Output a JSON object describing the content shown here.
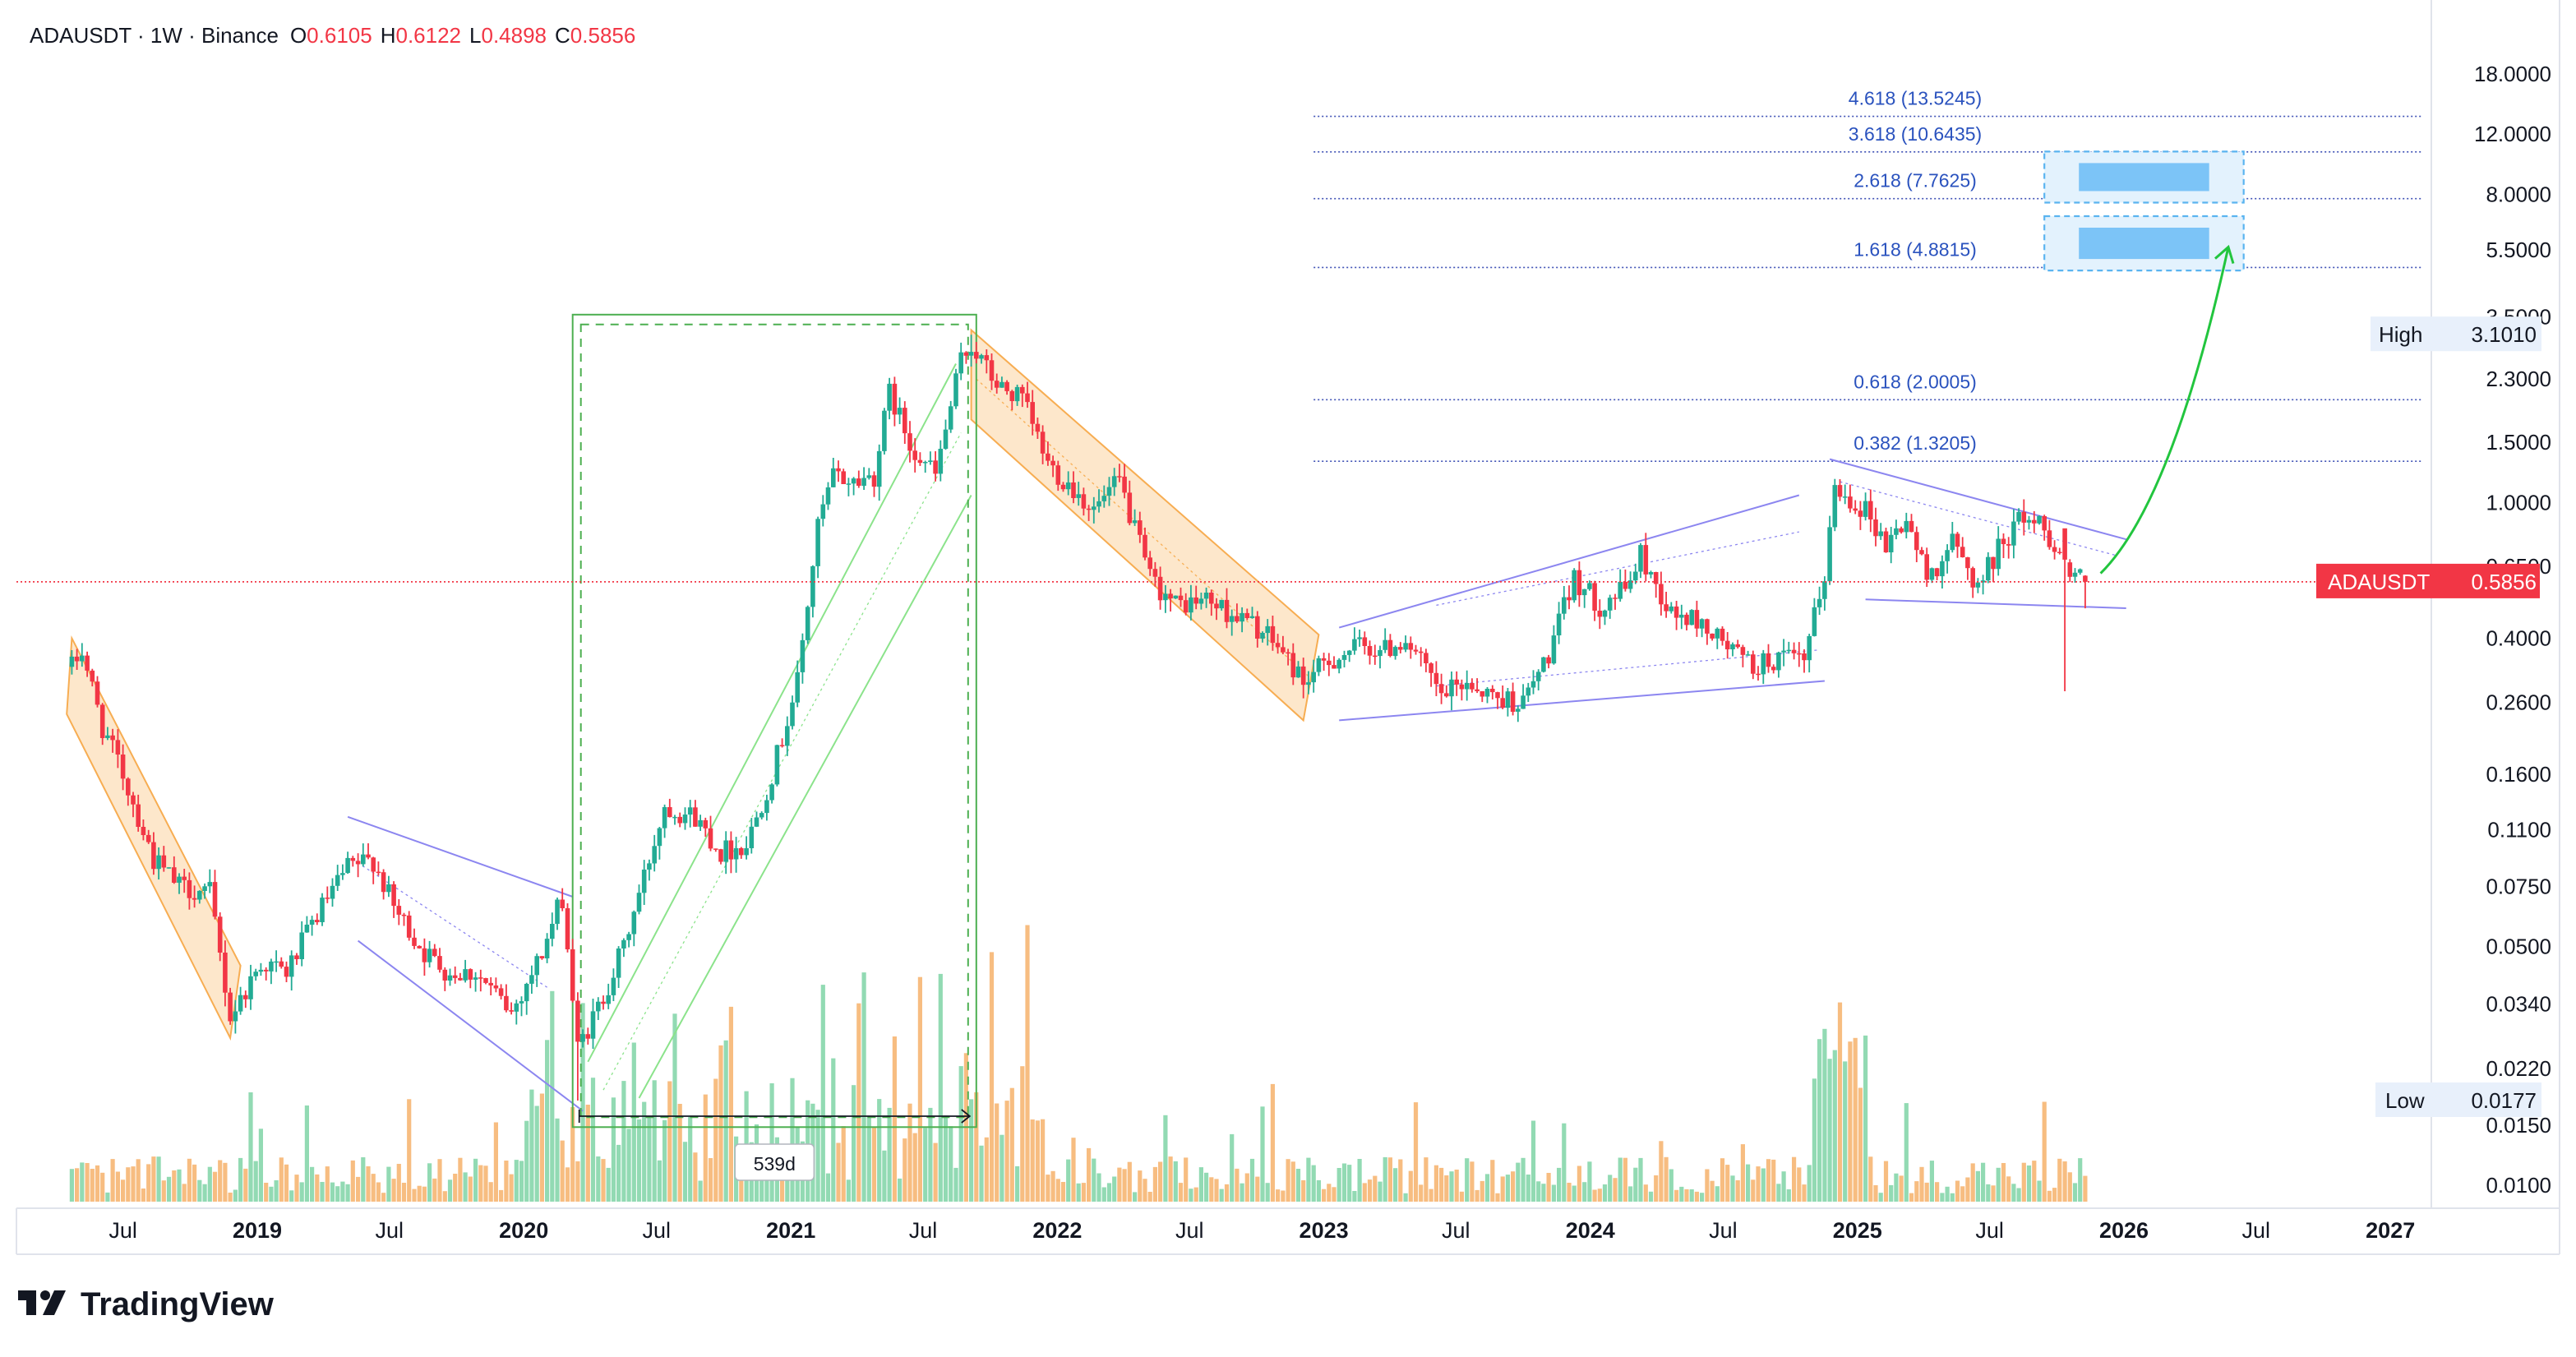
{
  "header": {
    "symbol_line": "ADAUSDT · 1W · Binance",
    "o_label": "O",
    "o_value": "0.6105",
    "h_label": "H",
    "h_value": "0.6122",
    "l_label": "L",
    "l_value": "0.4898",
    "c_label": "C",
    "c_value": "0.5856"
  },
  "branding": {
    "logo_text": "TradingView"
  },
  "price_scale": {
    "ticks": [
      "18.0000",
      "12.0000",
      "8.0000",
      "5.5000",
      "3.5000",
      "2.3000",
      "1.5000",
      "1.0000",
      "0.6500",
      "0.4000",
      "0.2600",
      "0.1600",
      "0.1100",
      "0.0750",
      "0.0500",
      "0.0340",
      "0.0220",
      "0.0150",
      "0.0100"
    ],
    "high_label": "High",
    "high_value": "3.1010",
    "low_label": "Low",
    "low_value": "0.0177",
    "current_symbol": "ADAUSDT",
    "current_value": "0.5856"
  },
  "time_axis": {
    "labels": [
      "Jul",
      "2019",
      "Jul",
      "2020",
      "Jul",
      "2021",
      "Jul",
      "2022",
      "Jul",
      "2023",
      "Jul",
      "2024",
      "Jul",
      "2025",
      "Jul",
      "2026",
      "Jul",
      "2027"
    ]
  },
  "fib_labels": [
    "4.618 (13.5245)",
    "3.618 (10.6435)",
    "2.618 (7.7625)",
    "1.618 (4.8815)",
    "0.618 (2.0005)",
    "0.382 (1.3205)"
  ],
  "measure_label": "539d",
  "colors": {
    "up": "#22ab94",
    "down": "#f23645",
    "volume_up": "#7fd3a6",
    "volume_down": "#f6b26b",
    "channel_fill": "#fde5c6",
    "channel_line": "#f7a540",
    "wedge_line": "#8c86f0",
    "box_line": "#4caf50",
    "arrow": "#22c53e",
    "target_fill": "#7cc4f7",
    "target_border": "#5ab4f0",
    "fib_line": "#3f51b5",
    "fib_text": "#2a52be",
    "price_line": "#f23645",
    "axis_text": "#131722"
  },
  "chart_data": {
    "type": "candlestick",
    "title": "ADAUSDT · 1W · Binance",
    "y_scale": "log",
    "ylim": [
      0.0085,
      19.5
    ],
    "xlim": [
      "2018-04-01",
      "2027-05-01"
    ],
    "last_price": 0.5856,
    "all_time_high": 3.101,
    "all_time_low": 0.0177,
    "fibonacci_levels": [
      {
        "ratio": 4.618,
        "price": 13.5245
      },
      {
        "ratio": 3.618,
        "price": 10.6435
      },
      {
        "ratio": 2.618,
        "price": 7.7625
      },
      {
        "ratio": 1.618,
        "price": 4.8815
      },
      {
        "ratio": 0.618,
        "price": 2.0005
      },
      {
        "ratio": 0.382,
        "price": 1.3205
      }
    ],
    "price_path": [
      [
        "2018-04-22",
        0.33
      ],
      [
        "2018-05-06",
        0.37
      ],
      [
        "2018-06-03",
        0.22
      ],
      [
        "2018-07-01",
        0.16
      ],
      [
        "2018-08-12",
        0.09
      ],
      [
        "2018-09-16",
        0.075
      ],
      [
        "2018-10-28",
        0.072
      ],
      [
        "2018-11-25",
        0.031
      ],
      [
        "2019-01-06",
        0.045
      ],
      [
        "2019-02-10",
        0.042
      ],
      [
        "2019-03-24",
        0.062
      ],
      [
        "2019-05-05",
        0.085
      ],
      [
        "2019-06-09",
        0.09
      ],
      [
        "2019-07-07",
        0.065
      ],
      [
        "2019-08-18",
        0.048
      ],
      [
        "2019-09-22",
        0.042
      ],
      [
        "2019-10-27",
        0.042
      ],
      [
        "2019-12-15",
        0.032
      ],
      [
        "2020-01-26",
        0.048
      ],
      [
        "2020-02-23",
        0.07
      ],
      [
        "2020-03-15",
        0.025
      ],
      [
        "2020-04-12",
        0.033
      ],
      [
        "2020-05-17",
        0.05
      ],
      [
        "2020-06-14",
        0.08
      ],
      [
        "2020-07-12",
        0.13
      ],
      [
        "2020-08-23",
        0.12
      ],
      [
        "2020-09-27",
        0.095
      ],
      [
        "2020-11-01",
        0.1
      ],
      [
        "2020-12-06",
        0.16
      ],
      [
        "2021-01-10",
        0.3
      ],
      [
        "2021-02-07",
        0.85
      ],
      [
        "2021-02-28",
        1.2
      ],
      [
        "2021-03-28",
        1.15
      ],
      [
        "2021-04-25",
        1.2
      ],
      [
        "2021-05-16",
        2.1
      ],
      [
        "2021-06-13",
        1.5
      ],
      [
        "2021-07-18",
        1.2
      ],
      [
        "2021-08-22",
        2.6
      ],
      [
        "2021-09-05",
        2.9
      ],
      [
        "2021-10-10",
        2.2
      ],
      [
        "2021-11-14",
        2.0
      ],
      [
        "2021-12-19",
        1.3
      ],
      [
        "2022-01-23",
        1.1
      ],
      [
        "2022-02-20",
        0.95
      ],
      [
        "2022-03-27",
        1.15
      ],
      [
        "2022-05-08",
        0.6
      ],
      [
        "2022-06-12",
        0.5
      ],
      [
        "2022-07-24",
        0.52
      ],
      [
        "2022-08-21",
        0.48
      ],
      [
        "2022-09-25",
        0.44
      ],
      [
        "2022-10-30",
        0.38
      ],
      [
        "2022-12-04",
        0.3
      ],
      [
        "2023-01-15",
        0.35
      ],
      [
        "2023-02-19",
        0.38
      ],
      [
        "2023-03-26",
        0.37
      ],
      [
        "2023-04-23",
        0.4
      ],
      [
        "2023-06-11",
        0.27
      ],
      [
        "2023-07-16",
        0.3
      ],
      [
        "2023-08-20",
        0.27
      ],
      [
        "2023-10-01",
        0.26
      ],
      [
        "2023-11-05",
        0.36
      ],
      [
        "2023-12-10",
        0.6
      ],
      [
        "2024-01-14",
        0.5
      ],
      [
        "2024-02-18",
        0.56
      ],
      [
        "2024-03-10",
        0.7
      ],
      [
        "2024-04-21",
        0.47
      ],
      [
        "2024-05-26",
        0.45
      ],
      [
        "2024-07-07",
        0.38
      ],
      [
        "2024-08-11",
        0.33
      ],
      [
        "2024-09-15",
        0.35
      ],
      [
        "2024-10-20",
        0.34
      ],
      [
        "2024-11-17",
        0.62
      ],
      [
        "2024-12-01",
        1.1
      ],
      [
        "2025-01-12",
        0.96
      ],
      [
        "2025-02-09",
        0.75
      ],
      [
        "2025-03-09",
        0.9
      ],
      [
        "2025-04-06",
        0.6
      ],
      [
        "2025-05-11",
        0.76
      ],
      [
        "2025-06-15",
        0.57
      ],
      [
        "2025-07-20",
        0.78
      ],
      [
        "2025-08-17",
        0.92
      ],
      [
        "2025-09-14",
        0.85
      ],
      [
        "2025-10-19",
        0.62
      ],
      [
        "2025-11-09",
        0.5856
      ]
    ],
    "annotations": [
      {
        "label": "539d",
        "from": "2020-03-15",
        "to": "2021-09-05"
      },
      {
        "type": "target_zone",
        "from_price": 5.0,
        "to_price": 6.6
      },
      {
        "type": "target_zone",
        "from_price": 7.9,
        "to_price": 10.2
      }
    ]
  }
}
